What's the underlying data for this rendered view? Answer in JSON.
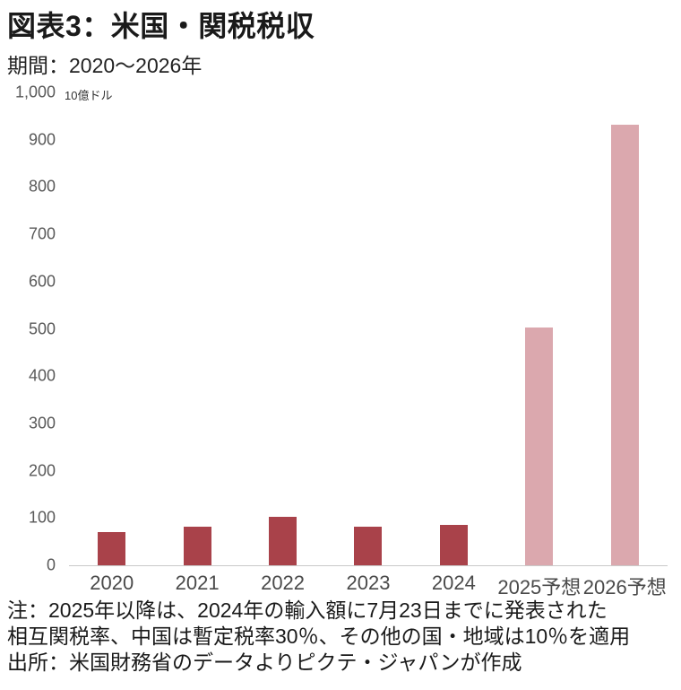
{
  "chart_data": {
    "type": "bar",
    "title": "図表3：米国・関税税収",
    "subtitle": "期間：2020～2026年",
    "unit_label": "10億ドル",
    "categories": [
      "2020",
      "2021",
      "2022",
      "2023",
      "2024",
      "2025予想",
      "2026予想"
    ],
    "values": [
      70,
      82,
      103,
      82,
      85,
      502,
      932
    ],
    "bar_kinds": [
      "actual",
      "actual",
      "actual",
      "actual",
      "actual",
      "forecast",
      "forecast"
    ],
    "ylim": [
      0,
      1000
    ],
    "ytick_step": 100,
    "ytick_labels": [
      "0",
      "100",
      "200",
      "300",
      "400",
      "500",
      "600",
      "700",
      "800",
      "900",
      "1,000"
    ],
    "grid": false,
    "legend": "none",
    "colors": {
      "actual": "#A9424A",
      "forecast": "#DBA8AE",
      "axis_line": "#C9C9C9",
      "tick_text": "#595959",
      "xlabel_text": "#4A4A4A",
      "text": "#1A1A1A"
    },
    "notes": [
      "注：2025年以降は、2024年の輸入額に7月23日までに発表された",
      "相互関税率、中国は暫定税率30％、その他の国・地域は10％を適用",
      "出所：米国財務省のデータよりピクテ・ジャパンが作成"
    ]
  }
}
